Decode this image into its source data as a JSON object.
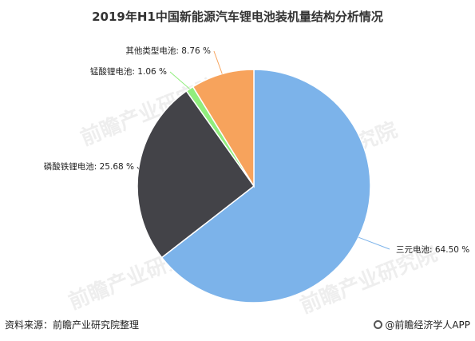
{
  "title": "2019年H1中国新能源汽车锂电池装机量结构分析情况",
  "footer": {
    "source": "资料来源：前瞻产业研究院整理",
    "brand": "@前瞻经济学人APP"
  },
  "watermark": "前瞻产业研究院",
  "chart_data": {
    "type": "pie",
    "title": "2019年H1中国新能源汽车锂电池装机量结构分析情况",
    "unit": "%",
    "start_angle_deg": 0,
    "direction": "clockwise",
    "legend": "none",
    "slices": [
      {
        "label": "三元电池",
        "display": "三元电池: 64.50 %",
        "value": 64.5,
        "color": "#7cb3ea"
      },
      {
        "label": "磷酸铁锂电池",
        "display": "磷酸铁锂电池: 25.68 %",
        "value": 25.68,
        "color": "#434348"
      },
      {
        "label": "锰酸锂电池",
        "display": "锰酸锂电池: 1.06 %",
        "value": 1.06,
        "color": "#90ed7d"
      },
      {
        "label": "其他类型电池",
        "display": "其他类型电池: 8.76 %",
        "value": 8.76,
        "color": "#f7a35c"
      }
    ]
  }
}
